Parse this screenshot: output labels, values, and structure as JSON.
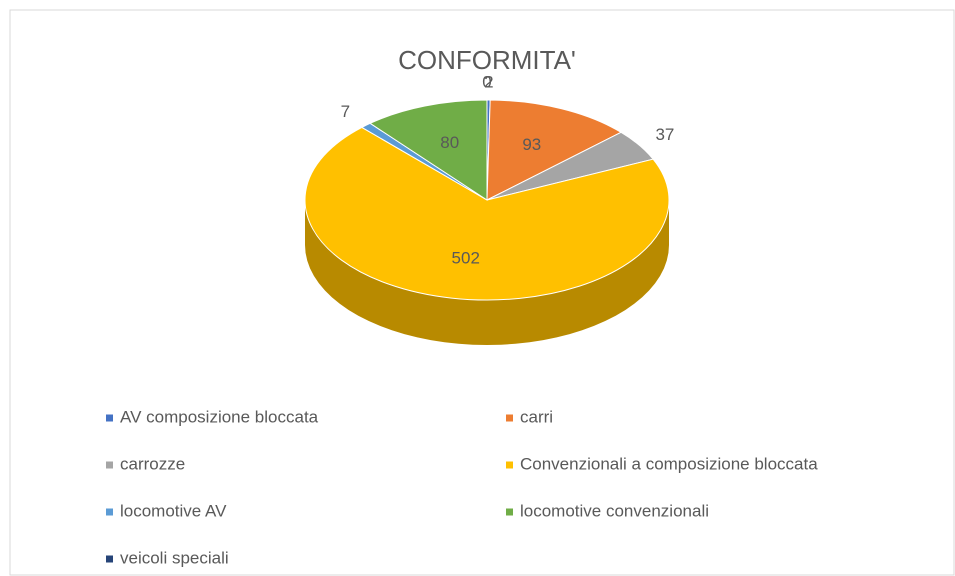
{
  "chart_data": {
    "type": "pie3d",
    "title": "CONFORMITA'",
    "categories": [
      "AV composizione bloccata",
      "carri",
      "carrozze",
      "Convenzionali a composizione bloccata",
      "locomotive AV",
      "locomotive convenzionali",
      "veicoli speciali"
    ],
    "values": [
      2,
      93,
      37,
      502,
      7,
      80,
      0
    ],
    "colors": [
      "#4472c4",
      "#ed7d31",
      "#a5a5a5",
      "#ffc000",
      "#5b9bd5",
      "#70ad47",
      "#264478"
    ],
    "legend": "bottom"
  }
}
